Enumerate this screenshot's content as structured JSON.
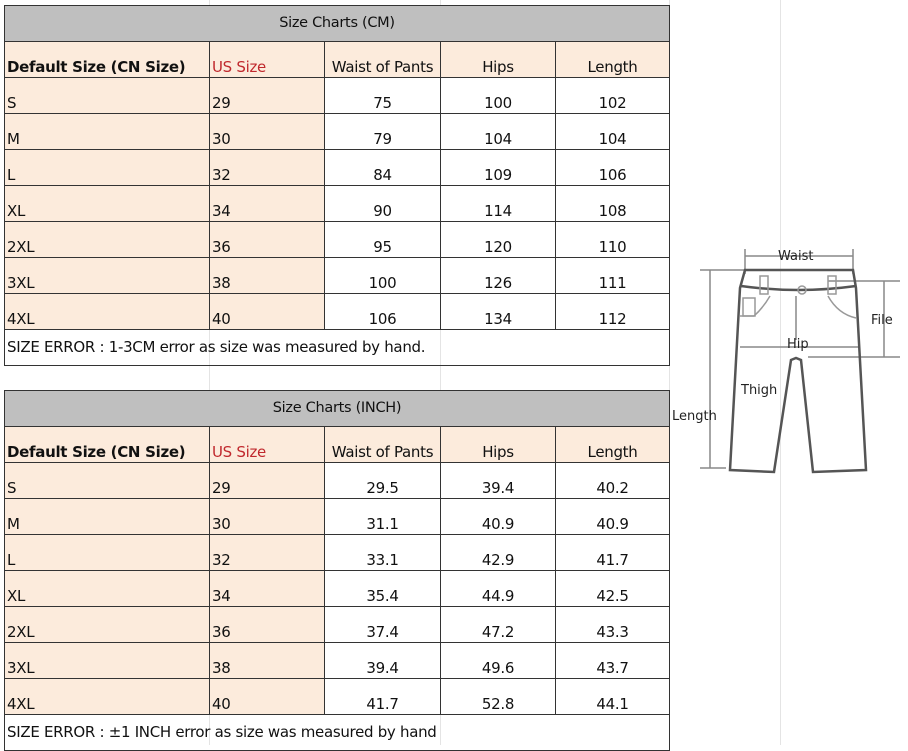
{
  "headers": [
    "Default Size (CN Size)",
    "US Size",
    "Waist of Pants",
    "Hips",
    "Length"
  ],
  "cm": {
    "title": "Size Charts (CM)",
    "rows": [
      [
        "S",
        "29",
        "75",
        "100",
        "102"
      ],
      [
        "M",
        "30",
        "79",
        "104",
        "104"
      ],
      [
        "L",
        "32",
        "84",
        "109",
        "106"
      ],
      [
        "XL",
        "34",
        "90",
        "114",
        "108"
      ],
      [
        "2XL",
        "36",
        "95",
        "120",
        "110"
      ],
      [
        "3XL",
        "38",
        "100",
        "126",
        "111"
      ],
      [
        "4XL",
        "40",
        "106",
        "134",
        "112"
      ]
    ],
    "error": "SIZE ERROR : 1-3CM error as size was measured by hand."
  },
  "inch": {
    "title": "Size Charts (INCH)",
    "rows": [
      [
        "S",
        "29",
        "29.5",
        "39.4",
        "40.2"
      ],
      [
        "M",
        "30",
        "31.1",
        "40.9",
        "40.9"
      ],
      [
        "L",
        "32",
        "33.1",
        "42.9",
        "41.7"
      ],
      [
        "XL",
        "34",
        "35.4",
        "44.9",
        "42.5"
      ],
      [
        "2XL",
        "36",
        "37.4",
        "47.2",
        "43.3"
      ],
      [
        "3XL",
        "38",
        "39.4",
        "49.6",
        "43.7"
      ],
      [
        "4XL",
        "40",
        "41.7",
        "52.8",
        "44.1"
      ]
    ],
    "error": "SIZE ERROR : ±1 INCH error as size was measured by hand"
  },
  "diagram": {
    "waist": "Waist",
    "file": "File",
    "hip": "Hip",
    "thigh": "Thigh",
    "length": "Length"
  },
  "colors": {
    "title_bg": "#bfbfbf",
    "header_bg": "#fcebdc",
    "us_size_text": "#c0282d"
  }
}
